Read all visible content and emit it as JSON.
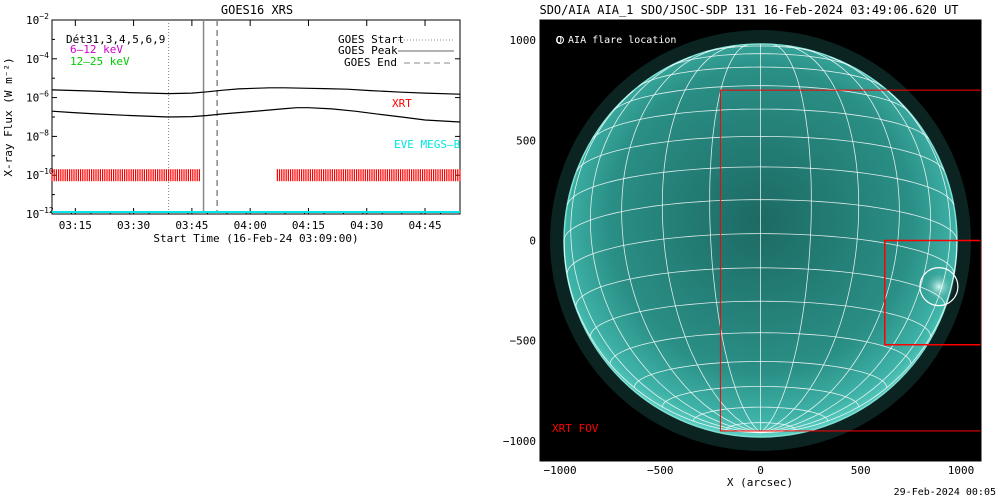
{
  "colors": {
    "background": "#ffffff",
    "disk": "#2a8f86",
    "grid": "#ffffff",
    "xrt": "#ff0000",
    "eve": "#00e5e5",
    "low_energy": "#cc00cc",
    "high_energy": "#00cc00"
  },
  "goes": {
    "title": "GOES16 XRS",
    "ylabel": "X-ray Flux (W m⁻²)",
    "xlabel": "Start Time (16-Feb-24 03:09:00)",
    "channels_label": "Dét31,3,4,5,6,9",
    "low_label": "6–12 keV",
    "high_label": "12–25 keV",
    "xrt_label": "XRT",
    "eve_label": "EVE MEGS–B",
    "legend": [
      {
        "label": "GOES Start",
        "style": "dotted"
      },
      {
        "label": "GOES Peak",
        "style": "solid"
      },
      {
        "label": "GOES End",
        "style": "dashed"
      }
    ]
  },
  "aia": {
    "title": "SDO/AIA AIA_1 SDO/JSOC-SDP 131 16-Feb-2024 03:49:06.620 UT",
    "xlabel": "X (arcsec)",
    "legend_label": "O AIA flare location",
    "fov_label": "XRT FOV"
  },
  "footer": {
    "timestamp": "29-Feb-2024 00:05"
  },
  "chart_data": [
    {
      "type": "line",
      "title": "GOES16 XRS",
      "xlabel": "Start Time (16-Feb-24 03:09:00)",
      "ylabel": "X-ray Flux (W m⁻²)",
      "xlim_minutes_after_start": [
        0,
        105
      ],
      "ylim": [
        1e-12,
        0.01
      ],
      "yscale": "log",
      "x_ticks": [
        {
          "minute": 6,
          "label": "03:15"
        },
        {
          "minute": 21,
          "label": "03:30"
        },
        {
          "minute": 36,
          "label": "03:45"
        },
        {
          "minute": 51,
          "label": "04:00"
        },
        {
          "minute": 66,
          "label": "04:15"
        },
        {
          "minute": 81,
          "label": "04:30"
        },
        {
          "minute": 96,
          "label": "04:45"
        }
      ],
      "y_ticks": [
        {
          "exp": -2,
          "label": "10",
          "sup": "−2"
        },
        {
          "exp": -4,
          "label": "10",
          "sup": "−4"
        },
        {
          "exp": -6,
          "label": "10",
          "sup": "−6"
        },
        {
          "exp": -8,
          "label": "10",
          "sup": "−8"
        },
        {
          "exp": -10,
          "label": "10",
          "sup": "−10"
        },
        {
          "exp": -12,
          "label": "10",
          "sup": "−12"
        }
      ],
      "events": {
        "start_minute": 30,
        "peak_minute": 39,
        "end_minute": 42.5
      },
      "series": [
        {
          "name": "6–12 keV",
          "x_minutes": [
            0,
            10,
            20,
            30,
            36,
            40,
            44,
            48,
            52,
            56,
            60,
            66,
            70,
            76,
            82,
            90,
            96,
            105
          ],
          "values": [
            2.5e-06,
            2.2e-06,
            1.8e-06,
            1.6e-06,
            1.7e-06,
            2e-06,
            2.4e-06,
            2.8e-06,
            3e-06,
            3.2e-06,
            3.2e-06,
            3e-06,
            2.9e-06,
            2.7e-06,
            2.3e-06,
            1.9e-06,
            1.7e-06,
            1.5e-06
          ]
        },
        {
          "name": "12–25 keV",
          "x_minutes": [
            0,
            5,
            10,
            20,
            30,
            36,
            40,
            44,
            50,
            56,
            60,
            63,
            66,
            72,
            78,
            84,
            90,
            96,
            105
          ],
          "values": [
            2e-07,
            1.7e-07,
            1.5e-07,
            1.2e-07,
            1e-07,
            1.05e-07,
            1.2e-07,
            1.45e-07,
            1.8e-07,
            2.3e-07,
            2.7e-07,
            3e-07,
            3e-07,
            2.6e-07,
            2e-07,
            1.4e-07,
            1e-07,
            7e-08,
            5.5e-08
          ]
        }
      ],
      "xrt_coverage_minutes": [
        [
          0,
          38
        ],
        [
          58,
          105
        ]
      ]
    },
    {
      "type": "scatter",
      "title": "SDO/AIA AIA_1 SDO/JSOC-SDP 131 16-Feb-2024 03:49:06.620 UT",
      "xlabel": "X (arcsec)",
      "xlim": [
        -1100,
        1100
      ],
      "ylim": [
        -1100,
        1100
      ],
      "x_ticks": [
        -1000,
        -500,
        0,
        500,
        1000
      ],
      "y_ticks": [
        -1000,
        -500,
        0,
        500,
        1000
      ],
      "solar_radius_arcsec": 980,
      "flare_location": {
        "x": 890,
        "y": -230
      },
      "xrt_fov_outer": {
        "x0": -200,
        "y0": -950,
        "x1": 1100,
        "y1": 750
      },
      "xrt_fov_inner": {
        "x0": 620,
        "y0": -520,
        "x1": 1100,
        "y1": 0
      }
    }
  ]
}
